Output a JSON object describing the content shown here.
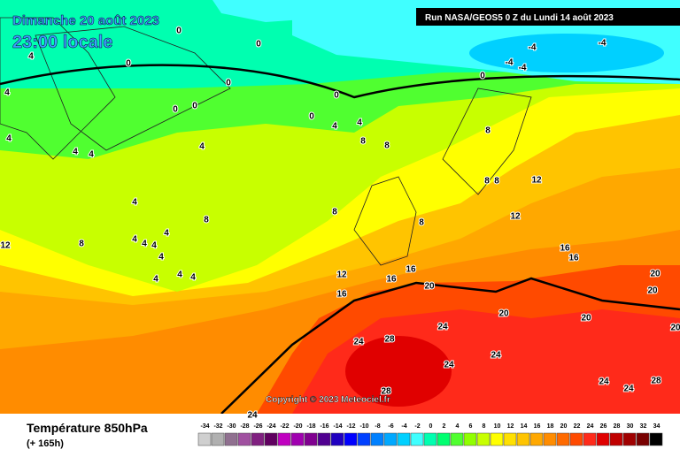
{
  "header": {
    "date": "Dimanche 20 août 2023",
    "time": "23:00 locale",
    "run": "Run NASA/GEOS5 0 Z du Lundi 14 août 2023"
  },
  "copyright": "Copyright © 2023 Meteociel.fr",
  "footer": {
    "title": "Température 850hPa",
    "lead": "(+ 165h)"
  },
  "color_scale": {
    "labels": [
      -34,
      -32,
      -30,
      -28,
      -26,
      -24,
      -22,
      -20,
      -18,
      -16,
      -14,
      -12,
      -10,
      -8,
      -6,
      -4,
      -2,
      0,
      2,
      4,
      6,
      8,
      10,
      12,
      14,
      16,
      18,
      20,
      22,
      24,
      26,
      28,
      30,
      32,
      34
    ],
    "colors": [
      "#cfcfcf",
      "#b0b0b0",
      "#907090",
      "#a050a0",
      "#802080",
      "#600060",
      "#c000c0",
      "#a000b0",
      "#800090",
      "#500090",
      "#2000c0",
      "#0000ff",
      "#0040ff",
      "#0080ff",
      "#00a8ff",
      "#00d0ff",
      "#40ffff",
      "#00ffb0",
      "#00ff70",
      "#50ff30",
      "#90ff00",
      "#c8ff00",
      "#ffff00",
      "#ffe000",
      "#ffc400",
      "#ffa800",
      "#ff8c00",
      "#ff6a00",
      "#ff4a00",
      "#ff2a1a",
      "#e00000",
      "#c00000",
      "#a00000",
      "#780000",
      "#000000"
    ]
  },
  "contour_labels": [
    0,
    0,
    0,
    0,
    0,
    0,
    0,
    0,
    0,
    -4,
    -4,
    -4,
    -4,
    4,
    4,
    4,
    4,
    4,
    4,
    4,
    4,
    4,
    4,
    4,
    4,
    4,
    4,
    4,
    4,
    4,
    8,
    8,
    8,
    8,
    8,
    8,
    8,
    8,
    8,
    12,
    12,
    12,
    12,
    16,
    16,
    16,
    16,
    16,
    20,
    20,
    20,
    20,
    20,
    20,
    24,
    24,
    24,
    24,
    24,
    24,
    24,
    28,
    28,
    28
  ]
}
